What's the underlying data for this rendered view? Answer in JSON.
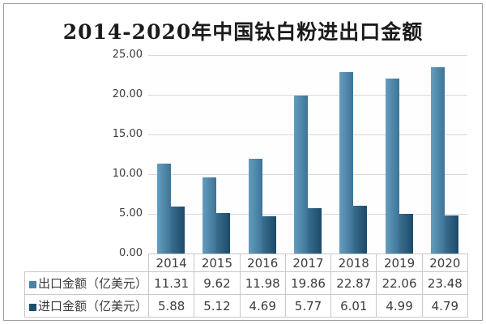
{
  "title": "2014-2020年中国钛白粉进出口金额",
  "chart_data": {
    "type": "bar",
    "title": "2014-2020年中国钛白粉进出口金额",
    "categories": [
      "2014",
      "2015",
      "2016",
      "2017",
      "2018",
      "2019",
      "2020"
    ],
    "series": [
      {
        "key": "export",
        "name": "出口金额（亿美元）",
        "values": [
          11.31,
          9.62,
          11.98,
          19.86,
          22.87,
          22.06,
          23.48
        ],
        "color_light": "#649dbe",
        "color_dark": "#3d7397",
        "swatch_color": "#4a83a8"
      },
      {
        "key": "import",
        "name": "进口金额（亿美元）",
        "values": [
          5.88,
          5.12,
          4.69,
          5.77,
          6.01,
          4.99,
          4.79
        ],
        "color_light": "#3a6e8e",
        "color_dark": "#1c4a69",
        "swatch_color": "#1e4e6e"
      }
    ],
    "ylim": [
      0,
      25
    ],
    "yticks": [
      0,
      5,
      10,
      15,
      20,
      25
    ],
    "ytick_labels": [
      "0.00",
      "5.00",
      "10.00",
      "15.00",
      "20.00",
      "25.00"
    ],
    "grid": true,
    "gridline_color": "#d9d9d9",
    "legend_position": "table-left"
  }
}
